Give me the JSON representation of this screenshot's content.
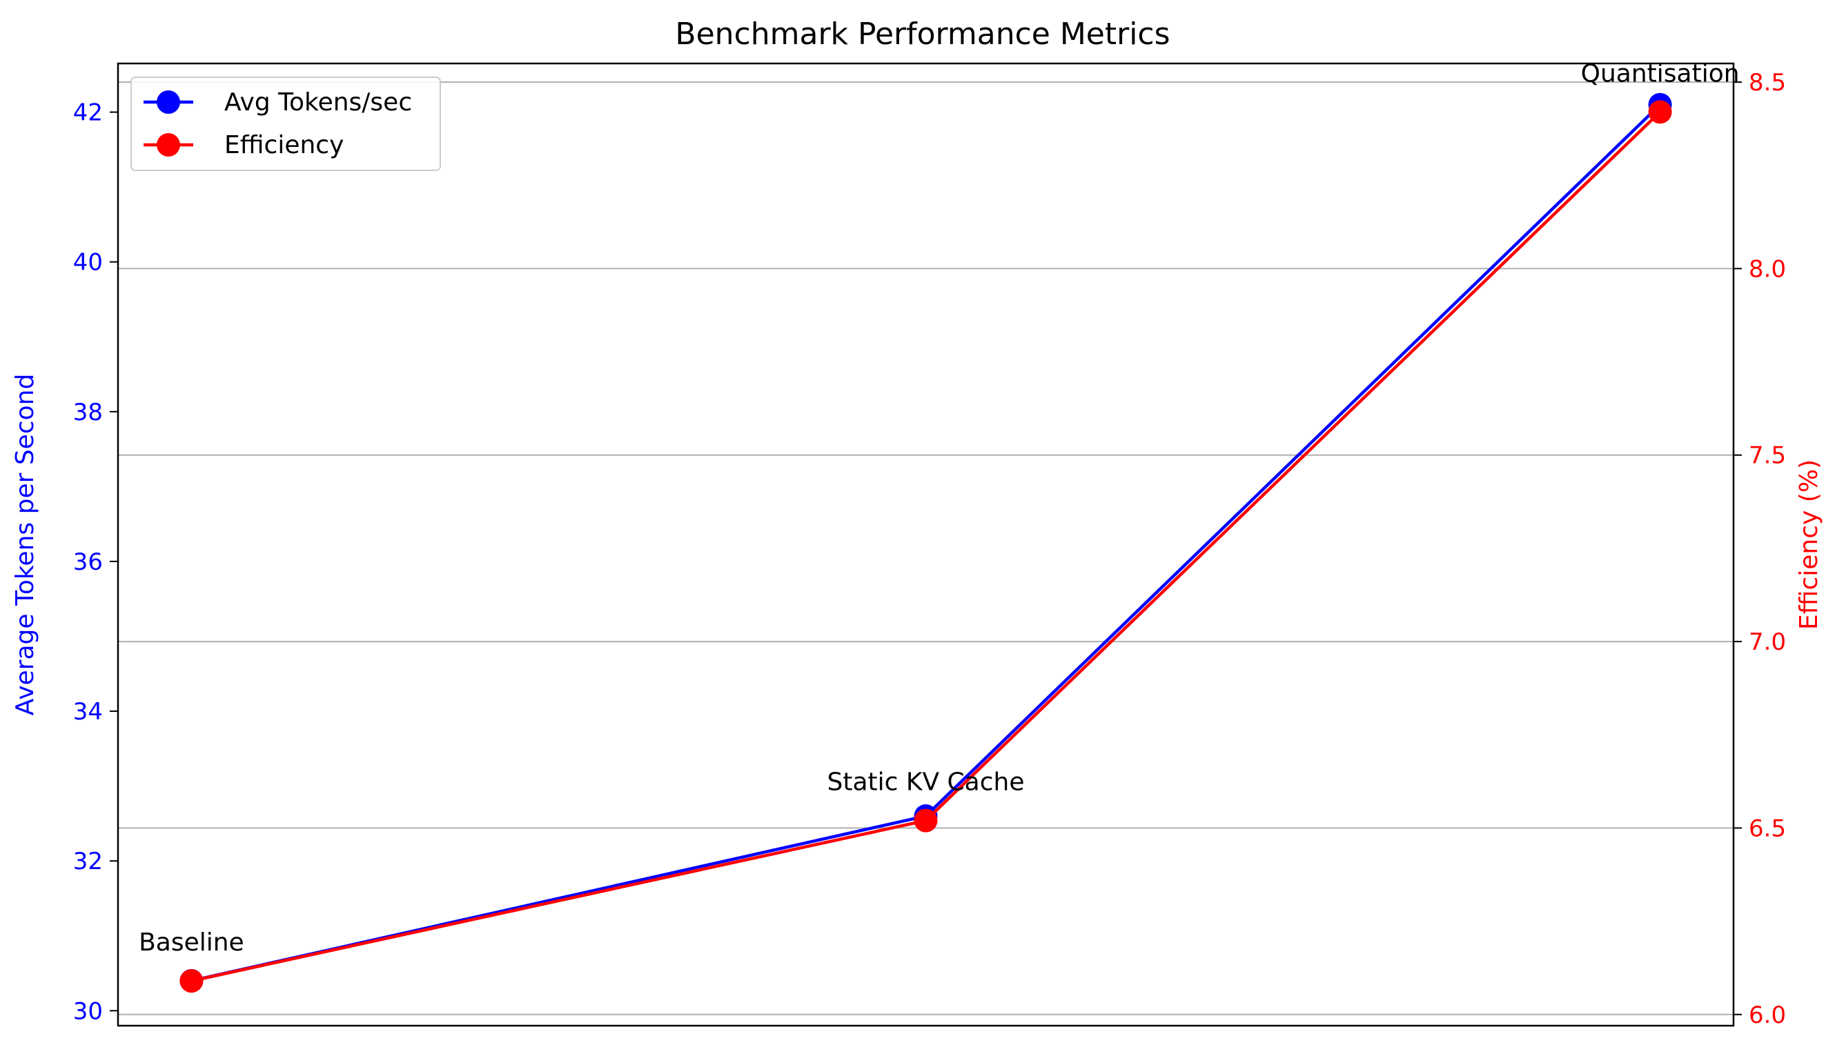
{
  "chart_data": {
    "type": "line",
    "title": "Benchmark Performance Metrics",
    "categories": [
      "Baseline",
      "Static KV Cache",
      "Quantisation"
    ],
    "x": [
      0,
      1,
      2
    ],
    "xlim": [
      -0.1,
      2.1
    ],
    "grid": true,
    "legend_position": "top-left",
    "left_axis": {
      "label": "Average Tokens per Second",
      "color": "#0000ff",
      "ylim": [
        29.8,
        42.65
      ],
      "ticks": [
        30,
        32,
        34,
        36,
        38,
        40,
        42
      ],
      "tick_labels": [
        "30",
        "32",
        "34",
        "36",
        "38",
        "40",
        "42"
      ]
    },
    "right_axis": {
      "label": "Efficiency (%)",
      "color": "#ff0000",
      "ylim": [
        5.97,
        8.55
      ],
      "ticks": [
        6.0,
        6.5,
        7.0,
        7.5,
        8.0,
        8.5
      ],
      "tick_labels": [
        "6.0",
        "6.5",
        "7.0",
        "7.5",
        "8.0",
        "8.5"
      ]
    },
    "series": [
      {
        "name": "Avg Tokens/sec",
        "axis": "left",
        "color": "#0000ff",
        "values": [
          30.4,
          32.6,
          42.1
        ]
      },
      {
        "name": "Efficiency",
        "axis": "right",
        "color": "#ff0000",
        "values": [
          6.09,
          6.52,
          8.42
        ]
      }
    ],
    "point_labels": [
      "Baseline",
      "Static KV Cache",
      "Quantisation"
    ]
  }
}
